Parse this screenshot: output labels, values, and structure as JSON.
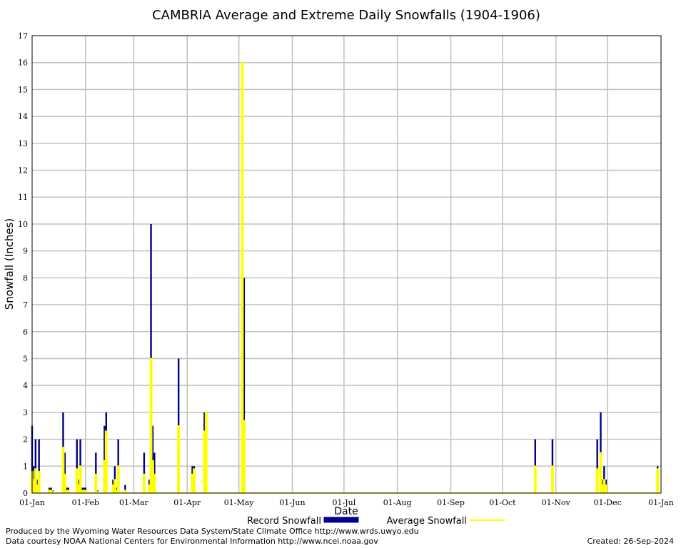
{
  "chart_data": {
    "type": "bar",
    "title": "CAMBRIA Average and Extreme Daily Snowfalls (1904-1906)",
    "xlabel": "Date",
    "ylabel": "Snowfall (Inches)",
    "ylim": [
      0,
      17
    ],
    "yticks": [
      0,
      1,
      2,
      3,
      4,
      5,
      6,
      7,
      8,
      9,
      10,
      11,
      12,
      13,
      14,
      15,
      16,
      17
    ],
    "xlim_days": [
      1,
      366
    ],
    "xticks": [
      {
        "label": "01-Jan",
        "day": 1
      },
      {
        "label": "01-Feb",
        "day": 32
      },
      {
        "label": "01-Mar",
        "day": 60
      },
      {
        "label": "01-Apr",
        "day": 91
      },
      {
        "label": "01-May",
        "day": 121
      },
      {
        "label": "01-Jun",
        "day": 152
      },
      {
        "label": "01-Jul",
        "day": 182
      },
      {
        "label": "01-Aug",
        "day": 213
      },
      {
        "label": "01-Sep",
        "day": 244
      },
      {
        "label": "01-Oct",
        "day": 274
      },
      {
        "label": "01-Nov",
        "day": 305
      },
      {
        "label": "01-Dec",
        "day": 335
      },
      {
        "label": "01-Jan",
        "day": 366
      }
    ],
    "grid": true,
    "legend_position": "bottom-center",
    "series": [
      {
        "name": "Record Snowfall",
        "color": "#00008b",
        "points": [
          [
            1,
            2.5
          ],
          [
            2,
            1.0
          ],
          [
            3,
            2.0
          ],
          [
            4,
            0.5
          ],
          [
            5,
            2.0
          ],
          [
            6,
            0.0
          ],
          [
            11,
            0.2
          ],
          [
            12,
            0.2
          ],
          [
            13,
            0.1
          ],
          [
            19,
            3.0
          ],
          [
            20,
            1.5
          ],
          [
            21,
            0.2
          ],
          [
            22,
            0.2
          ],
          [
            27,
            2.0
          ],
          [
            28,
            0.5
          ],
          [
            29,
            2.0
          ],
          [
            30,
            0.2
          ],
          [
            31,
            0.2
          ],
          [
            32,
            0.2
          ],
          [
            38,
            1.5
          ],
          [
            39,
            0.1
          ],
          [
            43,
            2.5
          ],
          [
            44,
            3.0
          ],
          [
            48,
            0.5
          ],
          [
            49,
            1.0
          ],
          [
            50,
            0.2
          ],
          [
            51,
            2.0
          ],
          [
            55,
            0.3
          ],
          [
            66,
            1.5
          ],
          [
            69,
            0.5
          ],
          [
            70,
            10.0
          ],
          [
            71,
            2.5
          ],
          [
            72,
            1.5
          ],
          [
            86,
            5.0
          ],
          [
            94,
            1.0
          ],
          [
            95,
            1.0
          ],
          [
            101,
            3.0
          ],
          [
            102,
            3.0
          ],
          [
            123,
            16.0
          ],
          [
            124,
            8.0
          ],
          [
            293,
            2.0
          ],
          [
            303,
            2.0
          ],
          [
            329,
            2.0
          ],
          [
            331,
            3.0
          ],
          [
            332,
            0.5
          ],
          [
            333,
            1.0
          ],
          [
            334,
            0.5
          ],
          [
            364,
            1.0
          ]
        ]
      },
      {
        "name": "Average Snowfall",
        "color": "#ffff00",
        "points": [
          [
            1,
            0.8
          ],
          [
            2,
            0.5
          ],
          [
            3,
            0.9
          ],
          [
            4,
            0.3
          ],
          [
            5,
            0.8
          ],
          [
            6,
            0.0
          ],
          [
            11,
            0.1
          ],
          [
            12,
            0.1
          ],
          [
            13,
            0.05
          ],
          [
            19,
            1.7
          ],
          [
            20,
            0.7
          ],
          [
            21,
            0.1
          ],
          [
            22,
            0.1
          ],
          [
            27,
            0.9
          ],
          [
            28,
            0.3
          ],
          [
            29,
            1.0
          ],
          [
            30,
            0.1
          ],
          [
            31,
            0.1
          ],
          [
            32,
            0.1
          ],
          [
            38,
            0.7
          ],
          [
            39,
            0.05
          ],
          [
            43,
            1.2
          ],
          [
            44,
            2.3
          ],
          [
            48,
            0.3
          ],
          [
            49,
            0.5
          ],
          [
            50,
            0.1
          ],
          [
            51,
            1.0
          ],
          [
            55,
            0.1
          ],
          [
            66,
            0.7
          ],
          [
            69,
            0.3
          ],
          [
            70,
            5.0
          ],
          [
            71,
            1.2
          ],
          [
            72,
            0.7
          ],
          [
            86,
            2.5
          ],
          [
            94,
            0.7
          ],
          [
            95,
            0.9
          ],
          [
            101,
            2.3
          ],
          [
            102,
            3.0
          ],
          [
            123,
            16.0
          ],
          [
            124,
            2.7
          ],
          [
            293,
            1.0
          ],
          [
            303,
            1.0
          ],
          [
            329,
            0.9
          ],
          [
            331,
            1.5
          ],
          [
            332,
            0.3
          ],
          [
            333,
            0.5
          ],
          [
            334,
            0.3
          ],
          [
            364,
            0.9
          ]
        ]
      }
    ]
  },
  "footer": {
    "produced_by": "Produced by the Wyoming Water Resources Data System/State Climate Office http://www.wrds.uwyo.edu",
    "courtesy": "Data courtesy NOAA National Centers for Environmental Information http://www.ncei.noaa.gov",
    "created": "Created: 26-Sep-2024"
  }
}
